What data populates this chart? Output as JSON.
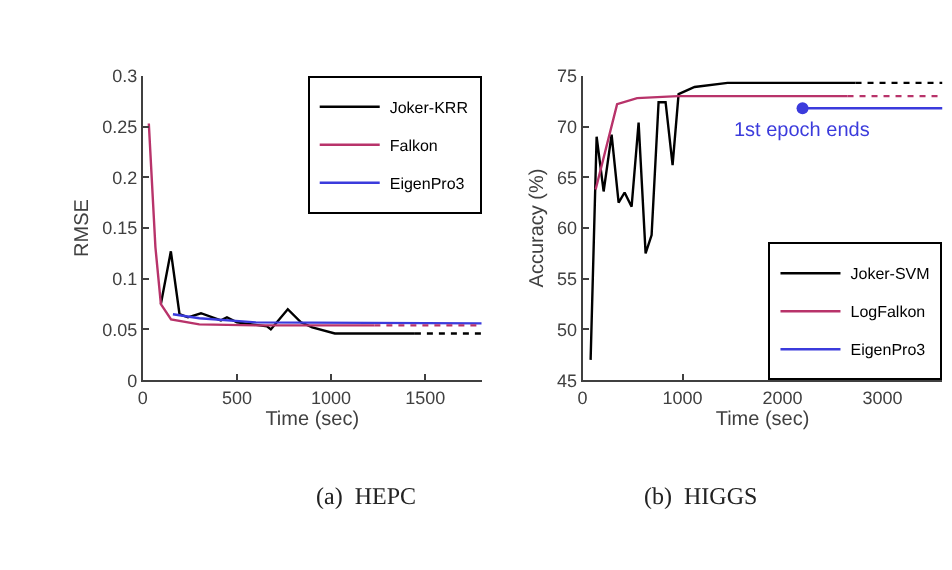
{
  "chart_data": [
    {
      "type": "line",
      "xlabel": "Time (sec)",
      "ylabel": "RMSE",
      "xlim": [
        0,
        1800
      ],
      "ylim": [
        0,
        0.3
      ],
      "xticks": [
        0,
        500,
        1000,
        1500
      ],
      "yticks": [
        0,
        0.05,
        0.1,
        0.15,
        0.2,
        0.25,
        0.3
      ],
      "legend": "top right",
      "annotations": [
        "(a)  HEPC"
      ],
      "series": [
        {
          "name": "Joker-KRR",
          "color": "#000000",
          "line_style": "solid",
          "x": [
            96,
            149,
            195,
            240,
            309,
            415,
            447,
            500,
            660,
            680,
            770,
            840,
            900,
            1020,
            1445
          ],
          "values": [
            0.075,
            0.127,
            0.065,
            0.062,
            0.066,
            0.059,
            0.062,
            0.057,
            0.053,
            0.05,
            0.07,
            0.057,
            0.052,
            0.046,
            0.046
          ]
        },
        {
          "name": "Falkon",
          "color": "#b8336a",
          "line_style": "solid",
          "x": [
            32,
            67,
            96,
            150,
            300,
            600,
            1230
          ],
          "values": [
            0.253,
            0.131,
            0.075,
            0.06,
            0.055,
            0.054,
            0.054
          ]
        },
        {
          "name": "EigenPro3",
          "color": "#3b3bdc",
          "line_style": "solid",
          "x": [
            160,
            300,
            600,
            1800
          ],
          "values": [
            0.065,
            0.061,
            0.057,
            0.056
          ]
        },
        {
          "color": "#000000",
          "line_style": "dotted",
          "x": [
            1445,
            1800
          ],
          "values": [
            0.046,
            0.046
          ]
        },
        {
          "color": "#b8336a",
          "line_style": "dotted",
          "x": [
            1230,
            1800
          ],
          "values": [
            0.054,
            0.054
          ]
        }
      ]
    },
    {
      "type": "line",
      "xlabel": "Time (sec)",
      "ylabel": "Accuracy (%)",
      "xlim": [
        0,
        3600
      ],
      "ylim": [
        45,
        75
      ],
      "xticks": [
        0,
        1000,
        2000,
        3000
      ],
      "yticks": [
        45,
        50,
        55,
        60,
        65,
        70,
        75
      ],
      "legend": "bottom right",
      "annotations": [
        {
          "text": "1st epoch ends",
          "x": 2200,
          "y": 71.8
        },
        "(b)  HIGGS"
      ],
      "series": [
        {
          "name": "Joker-SVM",
          "color": "#000000",
          "line_style": "solid",
          "x": [
            80,
            140,
            210,
            290,
            360,
            420,
            490,
            560,
            630,
            690,
            760,
            830,
            900,
            960,
            1120,
            1450,
            2730
          ],
          "values": [
            47,
            69,
            63.6,
            69.2,
            62.5,
            63.5,
            62.1,
            70.4,
            57.5,
            59.3,
            72.4,
            72.4,
            66.2,
            73.2,
            73.9,
            74.3,
            74.3
          ]
        },
        {
          "name": "LogFalkon",
          "color": "#b8336a",
          "line_style": "solid",
          "x": [
            130,
            345,
            545,
            950,
            2650
          ],
          "values": [
            63.8,
            72.2,
            72.8,
            73.0,
            73.0
          ]
        },
        {
          "name": "EigenPro3",
          "color": "#3b3bdc",
          "line_style": "solid",
          "x": [
            2200,
            3600
          ],
          "values": [
            71.8,
            71.8
          ]
        },
        {
          "color": "#3b3bdc",
          "type": "scatter",
          "x": [
            2200
          ],
          "values": [
            71.8
          ]
        },
        {
          "color": "#000000",
          "line_style": "dotted",
          "x": [
            2730,
            3600
          ],
          "values": [
            74.3,
            74.3
          ]
        },
        {
          "color": "#b8336a",
          "line_style": "dotted",
          "x": [
            2650,
            3600
          ],
          "values": [
            73.0,
            73.0
          ]
        }
      ]
    }
  ]
}
